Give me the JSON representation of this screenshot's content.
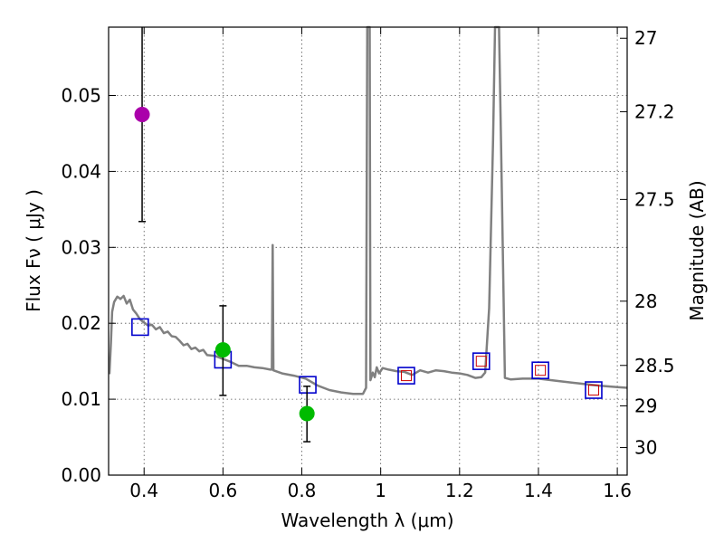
{
  "chart_data": {
    "type": "scatter",
    "xlabel": "Wavelength  λ (μm)",
    "ylabel": "Flux  Fν  ( μJy )",
    "y2label": "Magnitude (AB)",
    "xlim": [
      0.31,
      1.625
    ],
    "ylim": [
      0.0,
      0.059
    ],
    "grid": true,
    "x_ticks": [
      0.4,
      0.6,
      0.8,
      1.0,
      1.2,
      1.4,
      1.6
    ],
    "x_tick_labels": [
      "0.4",
      "0.6",
      "0.8",
      "1",
      "1.2",
      "1.4",
      "1.6"
    ],
    "y_ticks": [
      0.0,
      0.01,
      0.02,
      0.03,
      0.04,
      0.05
    ],
    "y_tick_labels": [
      "0.00",
      "0.01",
      "0.02",
      "0.03",
      "0.04",
      "0.05"
    ],
    "mag_ticks": [
      {
        "label": "27",
        "flux": 0.05754
      },
      {
        "label": "27.2",
        "flux": 0.04786
      },
      {
        "label": "27.5",
        "flux": 0.03631
      },
      {
        "label": "28",
        "flux": 0.02291
      },
      {
        "label": "28.5",
        "flux": 0.01445
      },
      {
        "label": "29",
        "flux": 0.00912
      },
      {
        "label": "30",
        "flux": 0.00363
      }
    ],
    "colors": {
      "model": "#808080",
      "model_points": "#0000cc",
      "measured_points": "#cc0000",
      "detection": "#00bb00",
      "upper": "#aa00aa",
      "error": "#000000",
      "grid": "#555555"
    },
    "series": [
      {
        "name": "model spectrum",
        "kind": "line",
        "points": [
          [
            0.312,
            0.0133
          ],
          [
            0.316,
            0.0175
          ],
          [
            0.319,
            0.0215
          ],
          [
            0.324,
            0.0228
          ],
          [
            0.332,
            0.0235
          ],
          [
            0.34,
            0.0232
          ],
          [
            0.348,
            0.0236
          ],
          [
            0.356,
            0.0226
          ],
          [
            0.364,
            0.0231
          ],
          [
            0.372,
            0.0218
          ],
          [
            0.38,
            0.0213
          ],
          [
            0.39,
            0.0205
          ],
          [
            0.4,
            0.0201
          ],
          [
            0.41,
            0.0197
          ],
          [
            0.42,
            0.0198
          ],
          [
            0.43,
            0.0192
          ],
          [
            0.44,
            0.0195
          ],
          [
            0.45,
            0.0187
          ],
          [
            0.46,
            0.0189
          ],
          [
            0.47,
            0.0183
          ],
          [
            0.48,
            0.0182
          ],
          [
            0.49,
            0.0177
          ],
          [
            0.5,
            0.0171
          ],
          [
            0.51,
            0.0173
          ],
          [
            0.52,
            0.0166
          ],
          [
            0.53,
            0.0168
          ],
          [
            0.54,
            0.0163
          ],
          [
            0.55,
            0.0165
          ],
          [
            0.56,
            0.0158
          ],
          [
            0.58,
            0.0157
          ],
          [
            0.6,
            0.0153
          ],
          [
            0.62,
            0.0149
          ],
          [
            0.64,
            0.0144
          ],
          [
            0.66,
            0.0144
          ],
          [
            0.68,
            0.0142
          ],
          [
            0.7,
            0.0141
          ],
          [
            0.72,
            0.0139
          ],
          [
            0.724,
            0.0139
          ],
          [
            0.726,
            0.0303
          ],
          [
            0.728,
            0.0138
          ],
          [
            0.75,
            0.0134
          ],
          [
            0.78,
            0.0131
          ],
          [
            0.81,
            0.0127
          ],
          [
            0.84,
            0.0118
          ],
          [
            0.87,
            0.0112
          ],
          [
            0.9,
            0.0109
          ],
          [
            0.93,
            0.0107
          ],
          [
            0.955,
            0.0107
          ],
          [
            0.963,
            0.0115
          ],
          [
            0.966,
            0.059
          ],
          [
            0.972,
            0.059
          ],
          [
            0.974,
            0.0125
          ],
          [
            0.98,
            0.0135
          ],
          [
            0.985,
            0.0129
          ],
          [
            0.99,
            0.0142
          ],
          [
            0.996,
            0.0134
          ],
          [
            1.005,
            0.0141
          ],
          [
            1.02,
            0.0139
          ],
          [
            1.04,
            0.0137
          ],
          [
            1.06,
            0.0136
          ],
          [
            1.08,
            0.0132
          ],
          [
            1.1,
            0.0138
          ],
          [
            1.12,
            0.0135
          ],
          [
            1.14,
            0.0138
          ],
          [
            1.16,
            0.0137
          ],
          [
            1.18,
            0.0135
          ],
          [
            1.2,
            0.0134
          ],
          [
            1.22,
            0.0132
          ],
          [
            1.24,
            0.0128
          ],
          [
            1.255,
            0.0129
          ],
          [
            1.265,
            0.0135
          ],
          [
            1.275,
            0.022
          ],
          [
            1.285,
            0.044
          ],
          [
            1.29,
            0.059
          ],
          [
            1.3,
            0.059
          ],
          [
            1.305,
            0.044
          ],
          [
            1.315,
            0.0128
          ],
          [
            1.33,
            0.0126
          ],
          [
            1.36,
            0.0127
          ],
          [
            1.4,
            0.0127
          ],
          [
            1.45,
            0.0124
          ],
          [
            1.5,
            0.0121
          ],
          [
            1.55,
            0.0118
          ],
          [
            1.6,
            0.0116
          ],
          [
            1.625,
            0.0115
          ]
        ]
      },
      {
        "name": "model photometry",
        "kind": "open-square",
        "points": [
          [
            0.39,
            0.0195
          ],
          [
            0.6,
            0.0152
          ],
          [
            0.815,
            0.0119
          ],
          [
            1.065,
            0.0131
          ],
          [
            1.255,
            0.015
          ],
          [
            1.405,
            0.0138
          ],
          [
            1.54,
            0.0112
          ]
        ]
      },
      {
        "name": "measured photometry",
        "kind": "small-square",
        "points": [
          [
            1.065,
            0.0131
          ],
          [
            1.255,
            0.015
          ],
          [
            1.405,
            0.0138
          ],
          [
            1.54,
            0.0112
          ]
        ]
      },
      {
        "name": "detections",
        "kind": "filled-circle",
        "points": [
          [
            0.6,
            0.0165,
            0.0105,
            0.0223
          ],
          [
            0.813,
            0.0081,
            0.0044,
            0.0117
          ]
        ]
      },
      {
        "name": "upper limit",
        "kind": "filled-circle",
        "points": [
          [
            0.395,
            0.0475,
            0.0334,
            0.059
          ]
        ]
      }
    ]
  }
}
